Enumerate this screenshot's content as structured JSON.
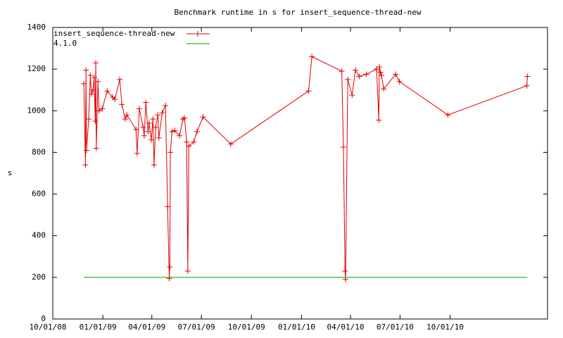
{
  "chart_data": {
    "type": "line",
    "title": "Benchmark runtime in s for insert_sequence-thread-new",
    "y_label": "s",
    "legend": "upper left",
    "xlim": [
      "10/01/08",
      "03/29/11"
    ],
    "xticks": [
      "10/01/08",
      "01/01/09",
      "04/01/09",
      "07/01/09",
      "10/01/09",
      "01/01/10",
      "04/01/10",
      "07/01/10",
      "10/01/10"
    ],
    "ylim": [
      0,
      1400
    ],
    "yticks": [
      0,
      200,
      400,
      600,
      800,
      1000,
      1200,
      1400
    ],
    "series": [
      {
        "name": "insert_sequence-thread-new",
        "color": "#e00000",
        "x": [
          "11/27/08",
          "11/30/08",
          "12/01/08",
          "12/02/08",
          "12/06/08",
          "12/09/08",
          "12/11/08",
          "12/14/08",
          "12/16/08",
          "12/18/08",
          "12/19/08",
          "12/20/08",
          "12/23/08",
          "12/25/08",
          "12/31/08",
          "01/09/09",
          "01/19/09",
          "01/23/09",
          "02/01/09",
          "02/05/09",
          "02/11/09",
          "02/14/09",
          "03/03/09",
          "03/05/09",
          "03/09/09",
          "03/16/09",
          "03/18/09",
          "03/21/09",
          "03/25/09",
          "03/27/09",
          "03/31/09",
          "04/03/09",
          "04/05/09",
          "04/08/09",
          "04/12/09",
          "04/14/09",
          "04/20/09",
          "04/26/09",
          "04/30/09",
          "05/03/09",
          "05/04/09",
          "05/05/09",
          "05/08/09",
          "05/13/09",
          "05/22/09",
          "05/28/09",
          "05/31/09",
          "06/04/09",
          "06/06/09",
          "06/08/09",
          "06/17/09",
          "06/23/09",
          "07/04/09",
          "08/24/09",
          "01/14/10",
          "01/20/10",
          "03/16/10",
          "03/19/10",
          "03/22/10",
          "03/23/10",
          "03/27/10",
          "04/04/10",
          "04/10/10",
          "04/17/10",
          "04/30/10",
          "05/19/10",
          "05/23/10",
          "05/24/10",
          "05/26/10",
          "05/28/10",
          "06/01/10",
          "06/23/10",
          "06/30/10",
          "09/27/10",
          "02/19/11",
          "02/20/11"
        ],
        "values": [
          1130,
          740,
          1195,
          810,
          960,
          1170,
          1080,
          1100,
          1160,
          950,
          1230,
          820,
          1140,
          1000,
          1010,
          1095,
          1065,
          1055,
          1150,
          1030,
          960,
          980,
          910,
          795,
          1010,
          920,
          880,
          1040,
          900,
          940,
          860,
          960,
          740,
          920,
          980,
          870,
          990,
          1025,
          540,
          195,
          250,
          800,
          900,
          905,
          880,
          960,
          965,
          850,
          230,
          830,
          850,
          900,
          970,
          840,
          1095,
          1260,
          1190,
          825,
          230,
          190,
          1150,
          1075,
          1195,
          1165,
          1175,
          1200,
          955,
          1210,
          1185,
          1170,
          1105,
          1175,
          1140,
          980,
          1120,
          1165
        ]
      },
      {
        "name": "4.1.0",
        "color": "#00a000",
        "x": [
          "11/27/08",
          "02/20/11"
        ],
        "values": [
          200,
          200
        ]
      }
    ]
  }
}
